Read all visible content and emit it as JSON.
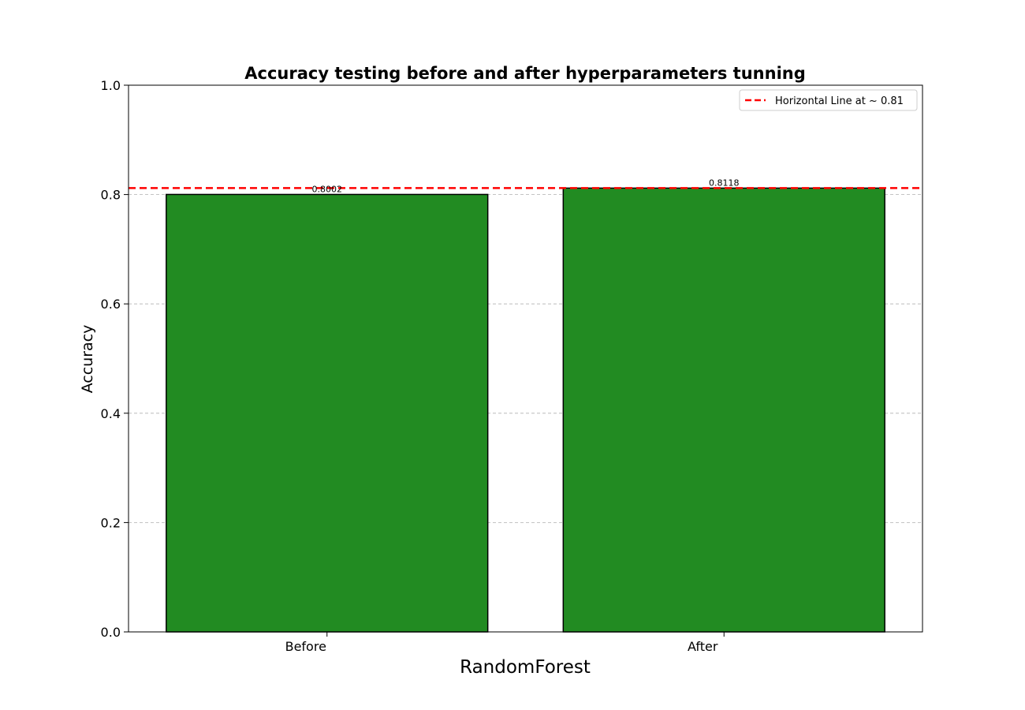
{
  "chart_data": {
    "type": "bar",
    "title": "Accuracy testing before and after hyperparameters tunning",
    "xlabel": "RandomForest",
    "ylabel": "Accuracy",
    "categories": [
      "Before",
      "After"
    ],
    "values": [
      0.8002,
      0.8118
    ],
    "value_labels": [
      "0.8002",
      "0.8118"
    ],
    "ylim": [
      0,
      1.0
    ],
    "yticks": [
      0.0,
      0.2,
      0.4,
      0.6,
      0.8,
      1.0
    ],
    "ytick_labels": [
      "0.0",
      "0.2",
      "0.4",
      "0.6",
      "0.8",
      "1.0"
    ],
    "grid": "y-dashed",
    "bar_color": "#228b22",
    "bar_edge_color": "#000000",
    "reference_line": {
      "y": 0.8118,
      "style": "dashed",
      "color": "#ff0000",
      "legend_label": "Horizontal Line at ~ 0.81"
    },
    "legend": {
      "placement": "top-right",
      "entries": [
        "Horizontal Line at ~ 0.81"
      ]
    }
  }
}
